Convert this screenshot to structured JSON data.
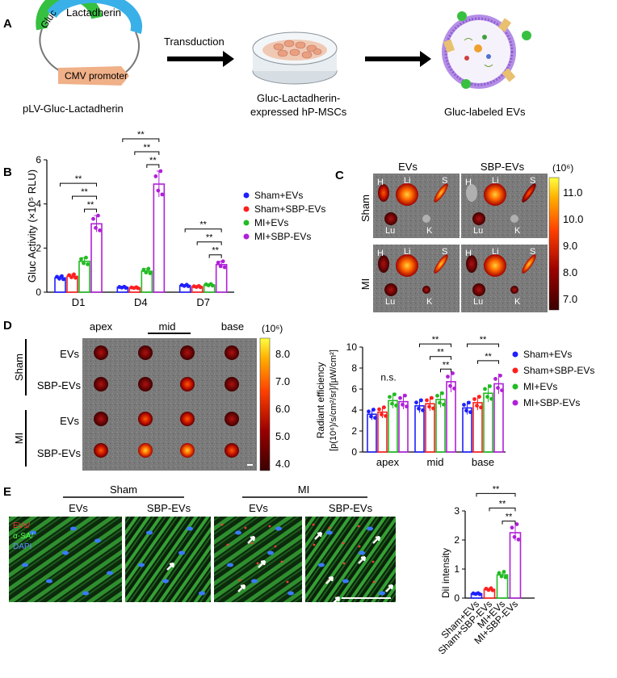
{
  "panels": {
    "A": {
      "letter": "A",
      "plasmid_gene1": "Gluc",
      "plasmid_gene2": "Lactadherin",
      "plasmid_promoter": "CMV promoter",
      "plasmid_label": "pLV-Gluc-Lactadherin",
      "arrow1_label": "Transduction",
      "cells_label_line1": "Gluc-Lactadherin-",
      "cells_label_line2": "expressed hP-MSCs",
      "ev_label": "Gluc-labeled EVs"
    },
    "C": {
      "letter": "C",
      "col_headers": [
        "EVs",
        "SBP-EVs"
      ],
      "row_labels": [
        "Sham",
        "MI"
      ],
      "organ_labels": [
        "H",
        "Li",
        "S",
        "Lu",
        "K"
      ],
      "colorbar_unit": "(10⁶)",
      "colorbar_ticks": [
        "11.0",
        "10.0",
        "9.0",
        "8.0",
        "7.0"
      ]
    },
    "D": {
      "letter": "D",
      "col_headers": [
        "apex",
        "mid",
        "base"
      ],
      "group_labels": [
        "Sham",
        "MI"
      ],
      "row_labels": [
        "EVs",
        "SBP-EVs",
        "EVs",
        "SBP-EVs"
      ],
      "colorbar_unit": "(10⁶)",
      "colorbar_ticks": [
        "8.0",
        "7.0",
        "6.0",
        "5.0",
        "4.0"
      ]
    },
    "E": {
      "letter": "E",
      "group_labels": [
        "Sham",
        "MI"
      ],
      "col_headers": [
        "EVs",
        "SBP-EVs",
        "EVs",
        "SBP-EVs"
      ],
      "stain_labels": [
        "EVs/",
        "α-SA/",
        "DAPI"
      ]
    }
  },
  "colors": {
    "sham_evs": "#1f1fff",
    "sham_sbp": "#ff1f1f",
    "mi_evs": "#22bb22",
    "mi_sbp": "#b020d8"
  },
  "chart_data": [
    {
      "id": "B",
      "letter": "B",
      "type": "bar",
      "categories": [
        "D1",
        "D4",
        "D7"
      ],
      "ylabel": "Gluc Activity (×10⁵ RLU)",
      "ylim": [
        0,
        6
      ],
      "yticks": [
        "0",
        "2",
        "4",
        "6"
      ],
      "series": [
        {
          "name": "Sham+EVs",
          "values": [
            0.65,
            0.22,
            0.3
          ]
        },
        {
          "name": "Sham+SBP-EVs",
          "values": [
            0.72,
            0.2,
            0.25
          ]
        },
        {
          "name": "MI+EVs",
          "values": [
            1.4,
            0.95,
            0.33
          ]
        },
        {
          "name": "MI+SBP-EVs",
          "values": [
            3.1,
            4.9,
            1.25
          ]
        }
      ],
      "significance": "**"
    },
    {
      "id": "D",
      "type": "bar",
      "categories": [
        "apex",
        "mid",
        "base"
      ],
      "ylabel_line1": "Radiant efficiency",
      "ylabel_line2": "[p(10⁶)/s/cm²/sr]/[µW/cm²]",
      "ylim": [
        0,
        10
      ],
      "yticks": [
        "0",
        "2",
        "4",
        "6",
        "8",
        "10"
      ],
      "series": [
        {
          "name": "Sham+EVs",
          "values": [
            3.6,
            4.4,
            4.2
          ]
        },
        {
          "name": "Sham+SBP-EVs",
          "values": [
            3.8,
            4.6,
            4.7
          ]
        },
        {
          "name": "MI+EVs",
          "values": [
            4.9,
            5.0,
            5.6
          ]
        },
        {
          "name": "MI+SBP-EVs",
          "values": [
            4.8,
            6.7,
            6.5
          ]
        }
      ],
      "ns_label": "n.s.",
      "significance": "**"
    },
    {
      "id": "E",
      "type": "bar",
      "categories": [
        "Sham+EVs",
        "Sham+SBP-EVs",
        "MI+EVs",
        "MI+SBP-EVs"
      ],
      "ylabel": "DiI intensity",
      "ylim": [
        0,
        3
      ],
      "yticks": [
        "0",
        "1",
        "2",
        "3"
      ],
      "values": [
        0.15,
        0.3,
        0.8,
        2.25
      ],
      "significance": "**"
    }
  ]
}
